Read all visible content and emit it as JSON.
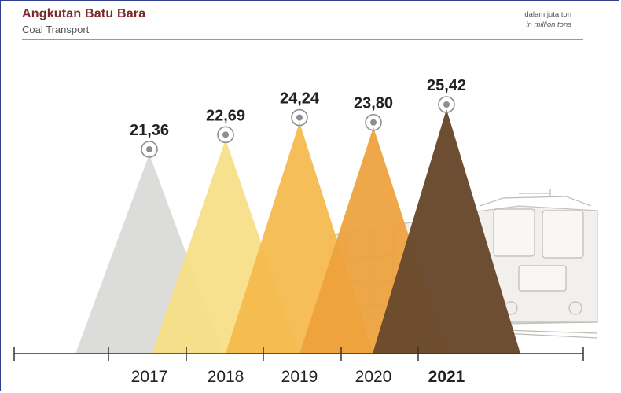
{
  "header": {
    "title": "Angkutan Batu Bara",
    "subtitle": "Coal Transport",
    "unit_id": "dalam juta ton",
    "unit_en": "in million tons"
  },
  "chart_data": {
    "type": "bar",
    "title": "Angkutan Batu Bara",
    "subtitle": "Coal Transport",
    "unit": "dalam juta ton / in million tons",
    "categories": [
      "2017",
      "2018",
      "2019",
      "2020",
      "2021"
    ],
    "values": [
      21.36,
      22.69,
      24.24,
      23.8,
      25.42
    ],
    "value_labels": [
      "21,36",
      "22,69",
      "24,24",
      "23,80",
      "25,42"
    ],
    "highlight": "2021",
    "colors": [
      "#d9d9d7",
      "#f7de84",
      "#f4b84a",
      "#eea13a",
      "#6b4a2e"
    ],
    "grid": false,
    "legend": "none"
  }
}
